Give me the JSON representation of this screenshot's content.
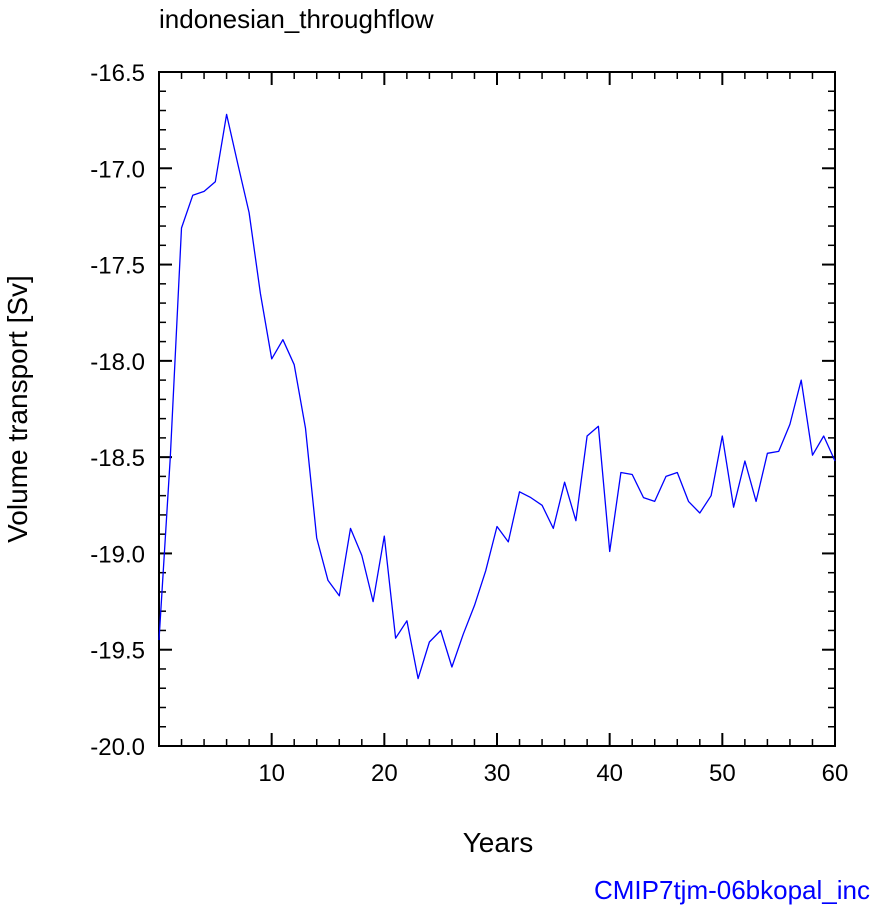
{
  "chart_data": {
    "type": "line",
    "title": "indonesian_throughflow",
    "xlabel": "Years",
    "ylabel": "Volume transport [Sv]",
    "footer": "CMIP7tjm-06bkopal_inc",
    "xlim": [
      0,
      60
    ],
    "ylim": [
      -20.0,
      -16.5
    ],
    "x_ticks": [
      10,
      20,
      30,
      40,
      50,
      60
    ],
    "x_tick_labels": [
      "10",
      "20",
      "30",
      "40",
      "50",
      "60"
    ],
    "y_ticks": [
      -16.5,
      -17.0,
      -17.5,
      -18.0,
      -18.5,
      -19.0,
      -19.5,
      -20.0
    ],
    "y_tick_labels": [
      "-16.5",
      "-17.0",
      "-17.5",
      "-18.0",
      "-18.5",
      "-19.0",
      "-19.5",
      "-20.0"
    ],
    "grid": false,
    "series_color": "#0000ff",
    "footer_color": "#0000ff",
    "series": [
      {
        "x": [
          0,
          1,
          2,
          3,
          4,
          5,
          6,
          7,
          8,
          9,
          10,
          11,
          12,
          13,
          14,
          15,
          16,
          17,
          18,
          19,
          20,
          21,
          22,
          23,
          24,
          25,
          26,
          27,
          28,
          29,
          30,
          31,
          32,
          33,
          34,
          35,
          36,
          37,
          38,
          39,
          40,
          41,
          42,
          43,
          44,
          45,
          46,
          47,
          48,
          49,
          50,
          51,
          52,
          53,
          54,
          55,
          56,
          57,
          58,
          59,
          60
        ],
        "values": [
          -19.45,
          -18.5,
          -17.31,
          -17.14,
          -17.12,
          -17.07,
          -16.72,
          -16.98,
          -17.23,
          -17.65,
          -17.99,
          -17.89,
          -18.02,
          -18.35,
          -18.92,
          -19.14,
          -19.22,
          -18.87,
          -19.01,
          -19.25,
          -18.91,
          -19.44,
          -19.35,
          -19.65,
          -19.46,
          -19.4,
          -19.59,
          -19.42,
          -19.27,
          -19.09,
          -18.86,
          -18.94,
          -18.68,
          -18.71,
          -18.75,
          -18.87,
          -18.63,
          -18.83,
          -18.39,
          -18.34,
          -18.99,
          -18.58,
          -18.59,
          -18.71,
          -18.73,
          -18.6,
          -18.58,
          -18.73,
          -18.79,
          -18.7,
          -18.39,
          -18.76,
          -18.52,
          -18.73,
          -18.48,
          -18.47,
          -18.33,
          -18.1,
          -18.49,
          -18.39,
          -18.52
        ]
      }
    ]
  }
}
